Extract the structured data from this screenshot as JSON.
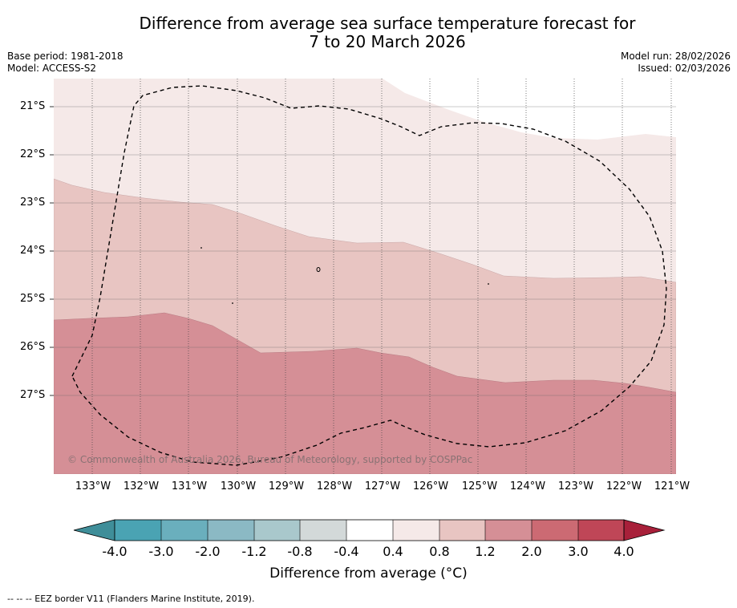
{
  "title_line1": "Difference from average sea surface temperature forecast for",
  "title_line2": "7 to 20 March 2026",
  "base_period": "Base period: 1981-2018",
  "model": "Model: ACCESS-S2",
  "model_run": "Model run: 28/02/2026",
  "issued": "Issued: 02/03/2026",
  "copyright": "© Commonwealth of Australia 2026, Bureau of Meteorology, supported by COSPPac",
  "lat_labels": [
    "21°S",
    "22°S",
    "23°S",
    "24°S",
    "25°S",
    "26°S",
    "27°S"
  ],
  "lon_labels": [
    "133°W",
    "132°W",
    "131°W",
    "130°W",
    "129°W",
    "128°W",
    "127°W",
    "126°W",
    "125°W",
    "124°W",
    "123°W",
    "122°W",
    "121°W"
  ],
  "colorbar": {
    "title": "Difference from average (°C)",
    "ticks": [
      "-4.0",
      "-3.0",
      "-2.0",
      "-1.2",
      "-0.8",
      "-0.4",
      "0.4",
      "0.8",
      "1.2",
      "2.0",
      "3.0",
      "4.0"
    ],
    "colors": [
      "#3f8e99",
      "#4aa3b3",
      "#6aafbd",
      "#8bb9c4",
      "#a9c8cc",
      "#d3d9d9",
      "#ffffff",
      "#f5e9e8",
      "#e8c5c2",
      "#d58f96",
      "#cc6a73",
      "#bf4657",
      "#a8203a"
    ]
  },
  "map_colors": {
    "band_0_4_to_0_8": "#f5e9e8",
    "band_0_8_to_1_2": "#e8c5c2",
    "band_1_2_to_2_0": "#d58f96"
  },
  "footnote": "--  --  -- EEZ border V11 (Flanders Marine Institute, 2019)."
}
